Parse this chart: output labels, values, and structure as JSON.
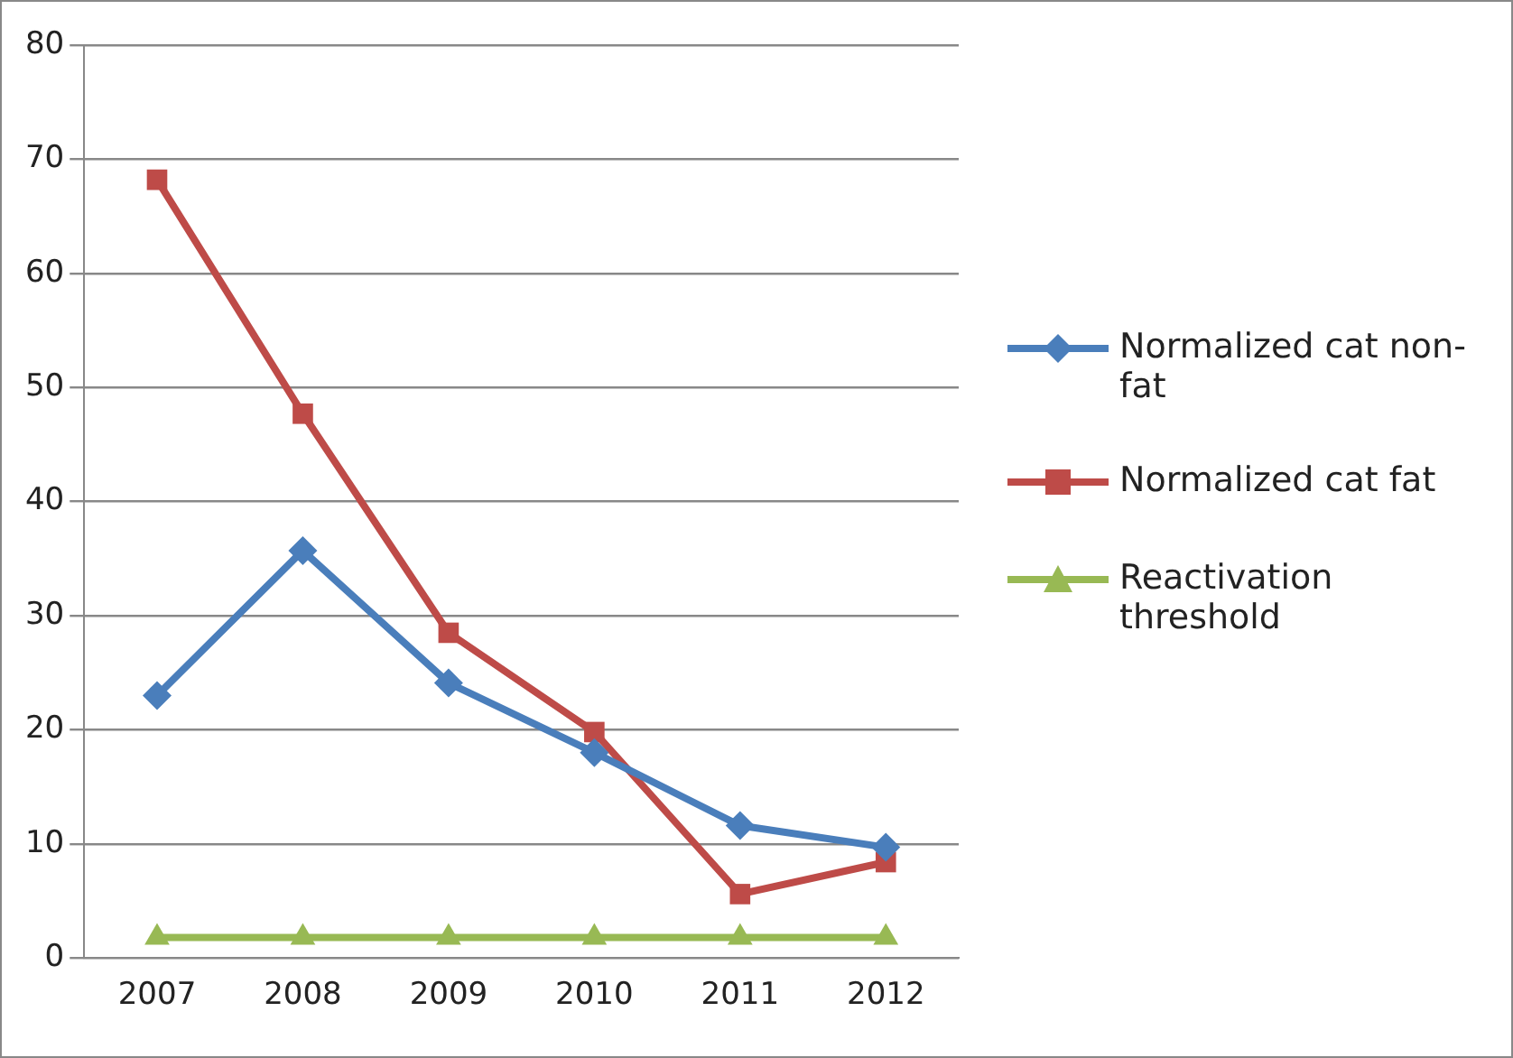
{
  "chart_data": {
    "type": "line",
    "categories": [
      "2007",
      "2008",
      "2009",
      "2010",
      "2011",
      "2012"
    ],
    "series": [
      {
        "name": "Normalized cat non-fat",
        "color": "#4a7ebb",
        "marker": "diamond",
        "values": [
          23,
          35.7,
          24.1,
          18,
          11.6,
          9.7
        ]
      },
      {
        "name": "Normalized cat fat",
        "color": "#be4b48",
        "marker": "square",
        "values": [
          68.2,
          47.7,
          28.5,
          19.8,
          5.6,
          8.4
        ]
      },
      {
        "name": "Reactivation threshold",
        "color": "#98b954",
        "marker": "triangle",
        "values": [
          1.8,
          1.8,
          1.8,
          1.8,
          1.8,
          1.8
        ]
      }
    ],
    "ylim": [
      0,
      80
    ],
    "yticks": [
      0,
      10,
      20,
      30,
      40,
      50,
      60,
      70,
      80
    ],
    "grid": "y",
    "legend": "right"
  }
}
